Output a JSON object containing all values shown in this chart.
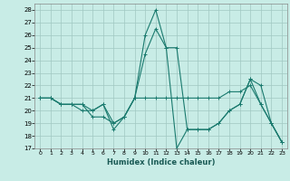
{
  "title": "",
  "xlabel": "Humidex (Indice chaleur)",
  "xlim": [
    -0.5,
    23.5
  ],
  "ylim": [
    17,
    28.5
  ],
  "yticks": [
    17,
    18,
    19,
    20,
    21,
    22,
    23,
    24,
    25,
    26,
    27,
    28
  ],
  "xticks": [
    0,
    1,
    2,
    3,
    4,
    5,
    6,
    7,
    8,
    9,
    10,
    11,
    12,
    13,
    14,
    15,
    16,
    17,
    18,
    19,
    20,
    21,
    22,
    23
  ],
  "bg_color": "#c8ece6",
  "grid_color": "#a0c8c2",
  "line_color": "#1a7a6e",
  "line1_x": [
    0,
    1,
    2,
    3,
    4,
    5,
    6,
    7,
    8,
    9,
    10,
    11,
    12,
    13,
    14,
    15,
    16,
    17,
    18,
    19,
    20,
    21,
    22,
    23
  ],
  "line1_y": [
    21.0,
    21.0,
    20.5,
    20.5,
    20.5,
    19.5,
    19.5,
    19.0,
    19.5,
    21.0,
    21.0,
    21.0,
    21.0,
    21.0,
    21.0,
    21.0,
    21.0,
    21.0,
    21.5,
    21.5,
    22.0,
    20.5,
    19.0,
    17.5
  ],
  "line2_x": [
    0,
    1,
    2,
    3,
    4,
    5,
    6,
    7,
    8,
    9,
    10,
    11,
    12,
    13,
    14,
    15,
    16,
    17,
    18,
    19,
    20,
    21,
    22,
    23
  ],
  "line2_y": [
    21.0,
    21.0,
    20.5,
    20.5,
    20.5,
    20.0,
    20.5,
    19.0,
    19.5,
    21.0,
    26.0,
    28.0,
    25.0,
    25.0,
    18.5,
    18.5,
    18.5,
    19.0,
    20.0,
    20.5,
    22.5,
    20.5,
    19.0,
    17.5
  ],
  "line3_x": [
    0,
    1,
    2,
    3,
    4,
    5,
    6,
    7,
    8,
    9,
    10,
    11,
    12,
    13,
    14,
    15,
    16,
    17,
    18,
    19,
    20,
    21,
    22,
    23
  ],
  "line3_y": [
    21.0,
    21.0,
    20.5,
    20.5,
    20.0,
    20.0,
    20.5,
    18.5,
    19.5,
    21.0,
    24.5,
    26.5,
    25.0,
    17.0,
    18.5,
    18.5,
    18.5,
    19.0,
    20.0,
    20.5,
    22.5,
    22.0,
    19.0,
    17.5
  ]
}
